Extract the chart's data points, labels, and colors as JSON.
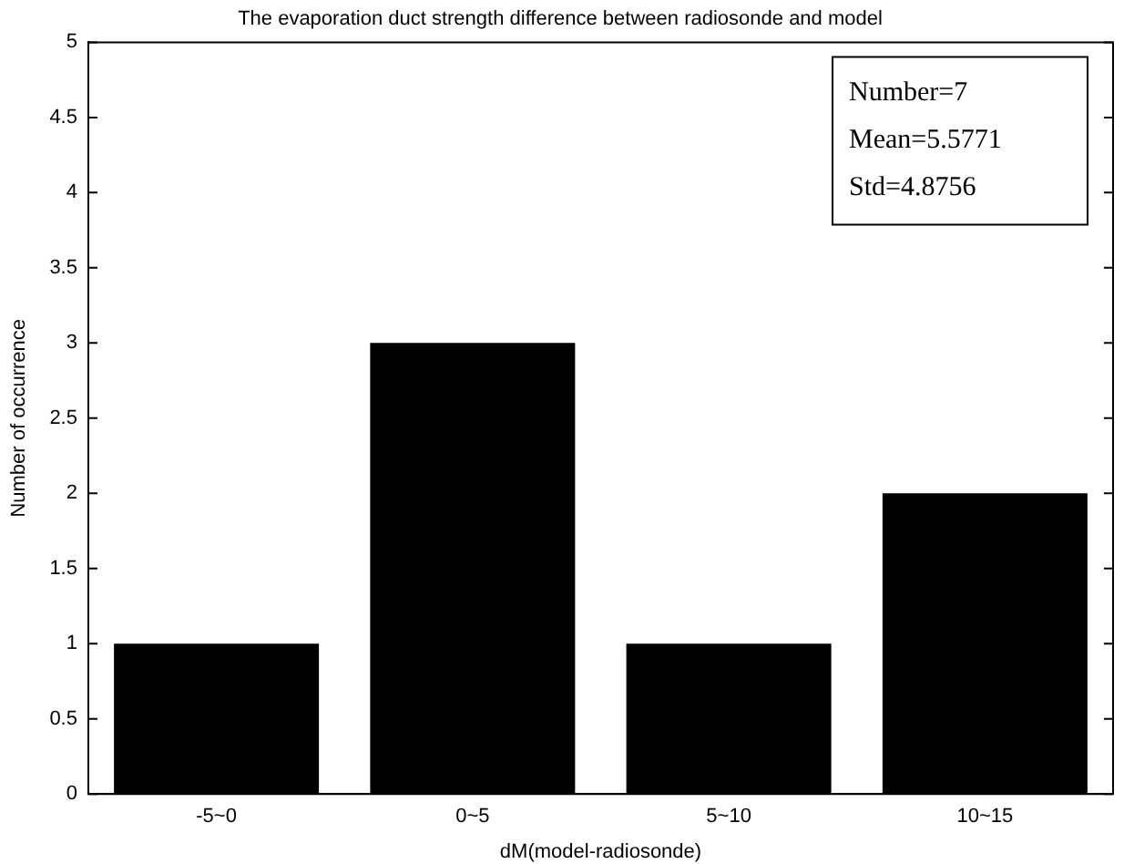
{
  "chart_data": {
    "type": "bar",
    "title": "The evaporation duct strength difference between radiosonde and model",
    "xlabel": "dM(model-radiosonde)",
    "ylabel": "Number of occurrence",
    "categories": [
      "-5~0",
      "0~5",
      "5~10",
      "10~15"
    ],
    "values": [
      1,
      3,
      1,
      2
    ],
    "color": "#000000",
    "ylim": [
      0,
      5
    ],
    "yticks": [
      0,
      0.5,
      1,
      1.5,
      2,
      2.5,
      3,
      3.5,
      4,
      4.5,
      5
    ],
    "annotations": [
      "Number=7",
      "Mean=5.5771",
      "Std=4.8756"
    ]
  }
}
